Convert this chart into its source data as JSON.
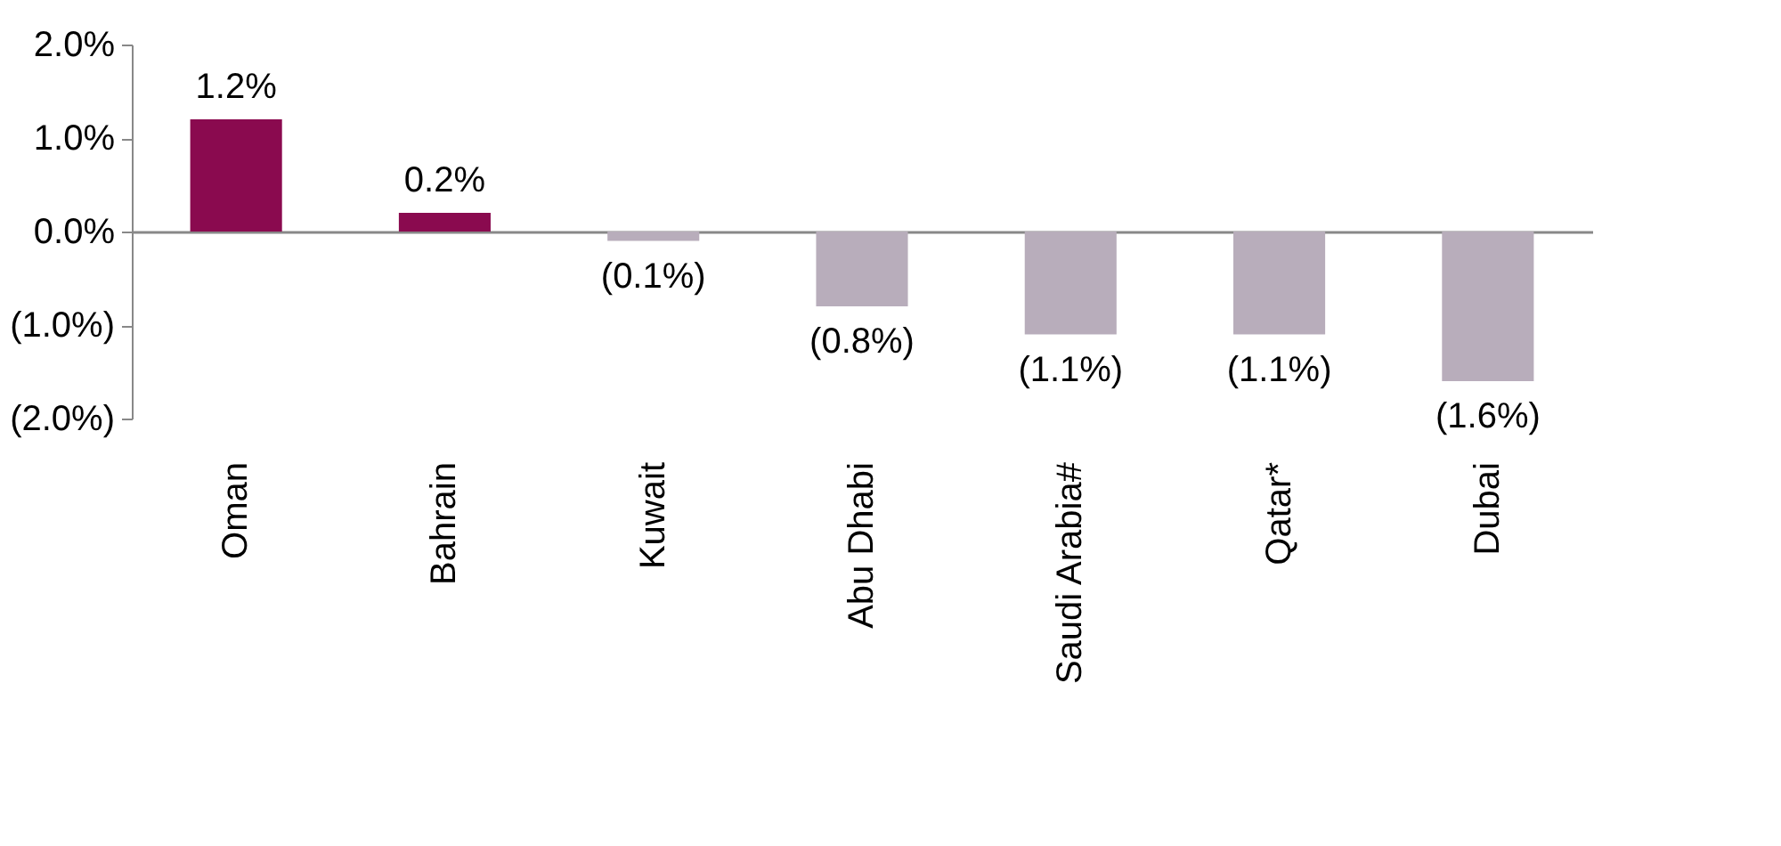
{
  "chart_data": {
    "type": "bar",
    "categories": [
      "Oman",
      "Bahrain",
      "Kuwait",
      "Abu Dhabi",
      "Saudi Arabia#",
      "Qatar*",
      "Dubai"
    ],
    "values": [
      1.2,
      0.2,
      -0.1,
      -0.8,
      -1.1,
      -1.1,
      -1.6
    ],
    "colors": [
      "#8a0a4f",
      "#8a0a4f",
      "#b8adbb",
      "#b8adbb",
      "#b8adbb",
      "#b8adbb",
      "#b8adbb"
    ],
    "value_labels": [
      "1.2%",
      "0.2%",
      "(0.1%)",
      "(0.8%)",
      "(1.1%)",
      "(1.1%)",
      "(1.6%)"
    ],
    "ylim": [
      -2,
      2
    ],
    "yticks": [
      {
        "value": -2,
        "label": "(2.0%)"
      },
      {
        "value": -1,
        "label": "(1.0%)"
      },
      {
        "value": 0,
        "label": "0.0%"
      },
      {
        "value": 1,
        "label": "1.0%"
      },
      {
        "value": 2,
        "label": "2.0%"
      }
    ]
  }
}
